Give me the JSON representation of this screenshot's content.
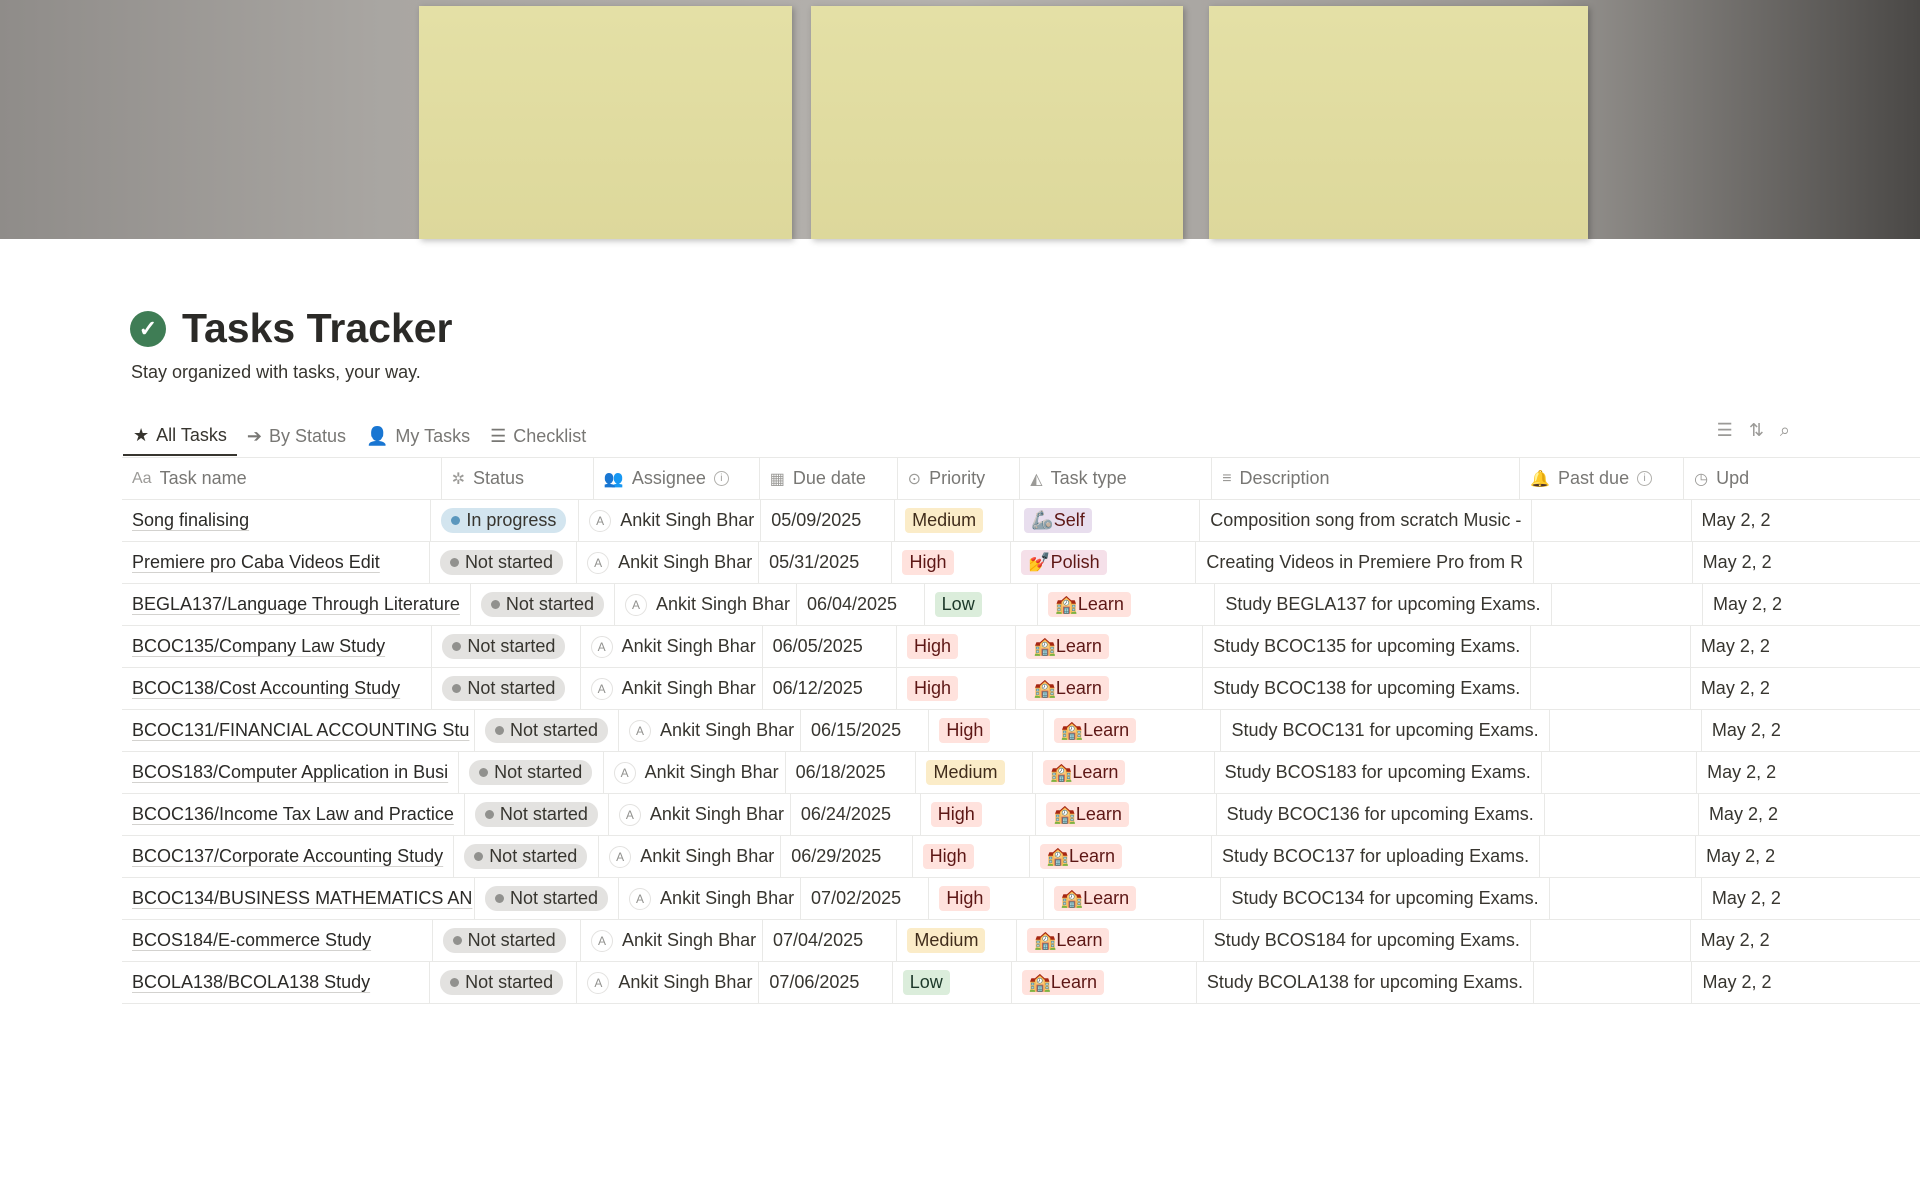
{
  "page": {
    "title": "Tasks Tracker",
    "subtitle": "Stay organized with tasks, your way."
  },
  "tabs": [
    {
      "label": "All Tasks",
      "icon": "star-icon",
      "active": true
    },
    {
      "label": "By Status",
      "icon": "arrow-circle-icon",
      "active": false
    },
    {
      "label": "My Tasks",
      "icon": "person-icon",
      "active": false
    },
    {
      "label": "Checklist",
      "icon": "checklist-icon",
      "active": false
    }
  ],
  "columns": [
    {
      "label": "Task name",
      "icon": "Aa"
    },
    {
      "label": "Status",
      "icon": "✲"
    },
    {
      "label": "Assignee",
      "icon": "👥"
    },
    {
      "label": "Due date",
      "icon": "▦"
    },
    {
      "label": "Priority",
      "icon": "⊙"
    },
    {
      "label": "Task type",
      "icon": "◭"
    },
    {
      "label": "Description",
      "icon": "≡"
    },
    {
      "label": "Past due",
      "icon": "🔔"
    },
    {
      "label": "Upd",
      "icon": "◷"
    }
  ],
  "colors": {
    "in_progress_bg": "#d3e5ef",
    "in_progress_dot": "#5b97bd",
    "not_started_bg": "#e3e2e0",
    "not_started_dot": "#91918e",
    "medium_bg": "#fbecc8",
    "medium_fg": "#402c1b",
    "high_bg": "#ffe2dd",
    "high_fg": "#5d1715",
    "low_bg": "#dbeddb",
    "low_fg": "#1c3829",
    "self_bg": "#e8deee",
    "polish_bg": "#f5e0e9",
    "learn_bg": "#ffe2dd"
  },
  "rows": [
    {
      "name": "Song finalising",
      "status": "In progress",
      "assignee": "Ankit Singh Bhar",
      "due": "05/09/2025",
      "priority": "Medium",
      "type": "Self",
      "type_emoji": "🦾",
      "description": "Composition song from scratch Music -",
      "past_due": "",
      "updated": "May 2, 2"
    },
    {
      "name": "Premiere pro Caba Videos Edit",
      "status": "Not started",
      "assignee": "Ankit Singh Bhar",
      "due": "05/31/2025",
      "priority": "High",
      "type": "Polish",
      "type_emoji": "💅",
      "description": "Creating Videos in Premiere Pro from R",
      "past_due": "",
      "updated": "May 2, 2"
    },
    {
      "name": "BEGLA137/Language Through Literature",
      "status": "Not started",
      "assignee": "Ankit Singh Bhar",
      "due": "06/04/2025",
      "priority": "Low",
      "type": "Learn",
      "type_emoji": "🏫",
      "description": "Study BEGLA137 for upcoming Exams.",
      "past_due": "",
      "updated": "May 2, 2"
    },
    {
      "name": "BCOC135/Company Law Study",
      "status": "Not started",
      "assignee": "Ankit Singh Bhar",
      "due": "06/05/2025",
      "priority": "High",
      "type": "Learn",
      "type_emoji": "🏫",
      "description": "Study BCOC135 for upcoming Exams.",
      "past_due": "",
      "updated": "May 2, 2"
    },
    {
      "name": "BCOC138/Cost Accounting Study",
      "status": "Not started",
      "assignee": "Ankit Singh Bhar",
      "due": "06/12/2025",
      "priority": "High",
      "type": "Learn",
      "type_emoji": "🏫",
      "description": "Study BCOC138 for upcoming Exams.",
      "past_due": "",
      "updated": "May 2, 2"
    },
    {
      "name": "BCOC131/FINANCIAL ACCOUNTING Stu",
      "status": "Not started",
      "assignee": "Ankit Singh Bhar",
      "due": "06/15/2025",
      "priority": "High",
      "type": "Learn",
      "type_emoji": "🏫",
      "description": "Study BCOC131 for upcoming Exams.",
      "past_due": "",
      "updated": "May 2, 2"
    },
    {
      "name": "BCOS183/Computer Application in Busi",
      "status": "Not started",
      "assignee": "Ankit Singh Bhar",
      "due": "06/18/2025",
      "priority": "Medium",
      "type": "Learn",
      "type_emoji": "🏫",
      "description": "Study BCOS183 for upcoming Exams.",
      "past_due": "",
      "updated": "May 2, 2"
    },
    {
      "name": "BCOC136/Income Tax Law and Practice",
      "status": "Not started",
      "assignee": "Ankit Singh Bhar",
      "due": "06/24/2025",
      "priority": "High",
      "type": "Learn",
      "type_emoji": "🏫",
      "description": "Study BCOC136 for upcoming Exams.",
      "past_due": "",
      "updated": "May 2, 2"
    },
    {
      "name": "BCOC137/Corporate Accounting Study",
      "status": "Not started",
      "assignee": "Ankit Singh Bhar",
      "due": "06/29/2025",
      "priority": "High",
      "type": "Learn",
      "type_emoji": "🏫",
      "description": "Study BCOC137 for uploading Exams.",
      "past_due": "",
      "updated": "May 2, 2"
    },
    {
      "name": "BCOC134/BUSINESS MATHEMATICS AN",
      "status": "Not started",
      "assignee": "Ankit Singh Bhar",
      "due": "07/02/2025",
      "priority": "High",
      "type": "Learn",
      "type_emoji": "🏫",
      "description": "Study BCOC134 for upcoming Exams.",
      "past_due": "",
      "updated": "May 2, 2"
    },
    {
      "name": "BCOS184/E-commerce Study",
      "status": "Not started",
      "assignee": "Ankit Singh Bhar",
      "due": "07/04/2025",
      "priority": "Medium",
      "type": "Learn",
      "type_emoji": "🏫",
      "description": "Study BCOS184 for upcoming Exams.",
      "past_due": "",
      "updated": "May 2, 2"
    },
    {
      "name": "BCOLA138/BCOLA138 Study",
      "status": "Not started",
      "assignee": "Ankit Singh Bhar",
      "due": "07/06/2025",
      "priority": "Low",
      "type": "Learn",
      "type_emoji": "🏫",
      "description": "Study BCOLA138 for upcoming Exams.",
      "past_due": "",
      "updated": "May 2, 2"
    }
  ]
}
